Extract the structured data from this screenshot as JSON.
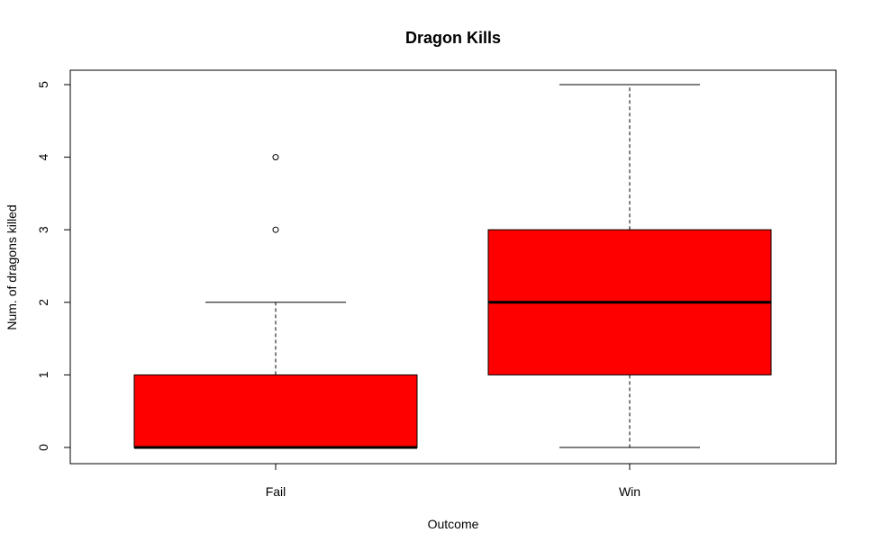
{
  "colors": {
    "box_fill": "#ff0000",
    "line": "#000000",
    "background": "#ffffff"
  },
  "chart_data": {
    "type": "boxplot",
    "title": "Dragon Kills",
    "xlabel": "Outcome",
    "ylabel": "Num. of dragons killed",
    "ylim": [
      0,
      5
    ],
    "yticks": [
      0,
      1,
      2,
      3,
      4,
      5
    ],
    "categories": [
      "Fail",
      "Win"
    ],
    "boxes": [
      {
        "category": "Fail",
        "q1": 0,
        "median": 0,
        "q3": 1,
        "whisker_low": 0,
        "whisker_high": 2,
        "outliers": [
          3,
          4
        ]
      },
      {
        "category": "Win",
        "q1": 1,
        "median": 2,
        "q3": 3,
        "whisker_low": 0,
        "whisker_high": 5,
        "outliers": []
      }
    ],
    "grid": false,
    "legend": "none"
  }
}
